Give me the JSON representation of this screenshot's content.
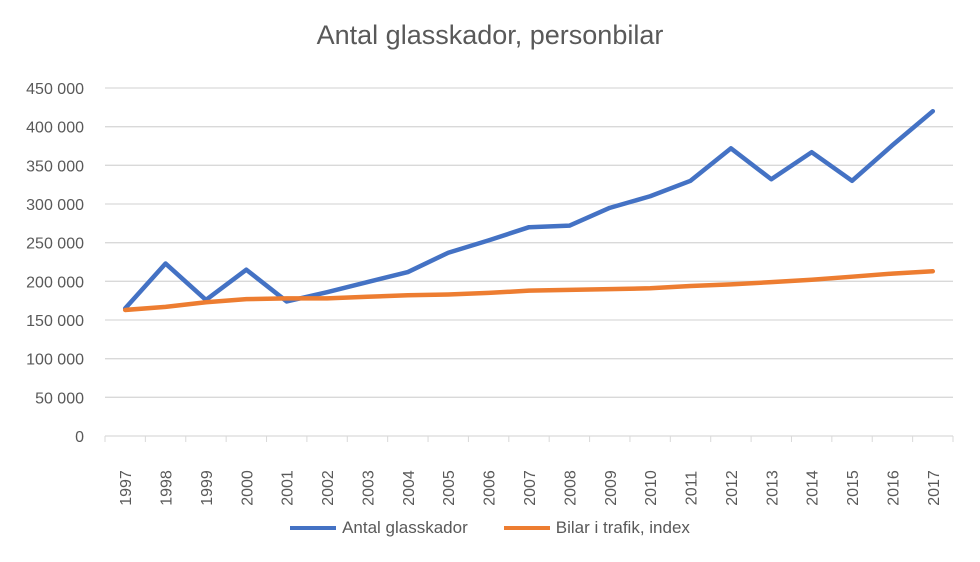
{
  "chart_data": {
    "type": "line",
    "title": "Antal glasskador, personbilar",
    "xlabel": "",
    "ylabel": "",
    "ylim": [
      0,
      450000
    ],
    "yticks": [
      "0",
      "50 000",
      "100 000",
      "150 000",
      "200 000",
      "250 000",
      "300 000",
      "350 000",
      "400 000",
      "450 000"
    ],
    "ytick_values": [
      0,
      50000,
      100000,
      150000,
      200000,
      250000,
      300000,
      350000,
      400000,
      450000
    ],
    "grid": true,
    "legend": "bottom",
    "categories": [
      "1997",
      "1998",
      "1999",
      "2000",
      "2001",
      "2002",
      "2003",
      "2004",
      "2005",
      "2006",
      "2007",
      "2008",
      "2009",
      "2010",
      "2011",
      "2012",
      "2013",
      "2014",
      "2015",
      "2016",
      "2017"
    ],
    "series": [
      {
        "name": "Antal glasskador",
        "color": "#4472C4",
        "values": [
          165000,
          223000,
          176000,
          215000,
          174000,
          186000,
          199000,
          212000,
          237000,
          253000,
          270000,
          272000,
          295000,
          310000,
          330000,
          372000,
          332000,
          367000,
          330000,
          376000,
          420000
        ]
      },
      {
        "name": "Bilar i trafik, index",
        "color": "#ED7D31",
        "values": [
          163000,
          167000,
          173000,
          177000,
          178000,
          178000,
          180000,
          182000,
          183000,
          185000,
          188000,
          189000,
          190000,
          191000,
          194000,
          196000,
          199000,
          202000,
          206000,
          210000,
          213000
        ]
      }
    ]
  }
}
